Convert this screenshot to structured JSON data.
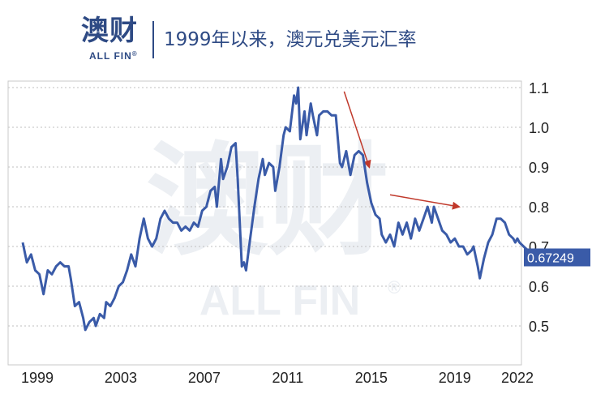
{
  "header": {
    "logo_cn": "澳财",
    "logo_en": "ALL FIN",
    "logo_reg": "®",
    "title": "1999年以来，澳元兑美元汇率"
  },
  "watermark": {
    "cn": "澳财",
    "en": "ALL FIN",
    "reg": "®"
  },
  "colors": {
    "line": "#3a5ba8",
    "arrow": "#c0392b",
    "brand": "#2e4a84",
    "grid": "#bfbfbf"
  },
  "chart_data": {
    "type": "line",
    "title": "1999年以来，澳元兑美元汇率",
    "xlim": [
      1998.2,
      2022.3
    ],
    "ylim": [
      0.4,
      1.1
    ],
    "x_ticks": [
      "1999",
      "2003",
      "2007",
      "2011",
      "2015",
      "2019",
      "2022"
    ],
    "x_tick_values": [
      1999,
      2003,
      2007,
      2011,
      2015,
      2019,
      2022
    ],
    "y_ticks": [
      "1.1",
      "1.0",
      "0.9",
      "0.8",
      "0.7",
      "0.6",
      "0.5"
    ],
    "y_tick_values": [
      1.1,
      1.0,
      0.9,
      0.8,
      0.7,
      0.6,
      0.5
    ],
    "grid": "horizontal dotted",
    "last_value_label": "0.67249",
    "last_value": 0.67249,
    "series": [
      {
        "points": [
          [
            1998.3,
            0.71
          ],
          [
            1998.5,
            0.66
          ],
          [
            1998.7,
            0.68
          ],
          [
            1998.9,
            0.64
          ],
          [
            1999.1,
            0.63
          ],
          [
            1999.3,
            0.58
          ],
          [
            1999.5,
            0.64
          ],
          [
            1999.7,
            0.63
          ],
          [
            1999.9,
            0.65
          ],
          [
            2000.1,
            0.66
          ],
          [
            2000.3,
            0.65
          ],
          [
            2000.5,
            0.65
          ],
          [
            2000.6,
            0.62
          ],
          [
            2000.8,
            0.55
          ],
          [
            2001.0,
            0.56
          ],
          [
            2001.2,
            0.52
          ],
          [
            2001.3,
            0.49
          ],
          [
            2001.5,
            0.51
          ],
          [
            2001.7,
            0.52
          ],
          [
            2001.8,
            0.5
          ],
          [
            2002.0,
            0.53
          ],
          [
            2002.2,
            0.52
          ],
          [
            2002.3,
            0.56
          ],
          [
            2002.5,
            0.55
          ],
          [
            2002.7,
            0.57
          ],
          [
            2002.9,
            0.6
          ],
          [
            2003.1,
            0.61
          ],
          [
            2003.3,
            0.64
          ],
          [
            2003.5,
            0.68
          ],
          [
            2003.7,
            0.65
          ],
          [
            2003.9,
            0.72
          ],
          [
            2004.1,
            0.77
          ],
          [
            2004.3,
            0.72
          ],
          [
            2004.5,
            0.7
          ],
          [
            2004.7,
            0.72
          ],
          [
            2004.9,
            0.77
          ],
          [
            2005.1,
            0.79
          ],
          [
            2005.3,
            0.77
          ],
          [
            2005.5,
            0.76
          ],
          [
            2005.7,
            0.76
          ],
          [
            2005.9,
            0.74
          ],
          [
            2006.1,
            0.75
          ],
          [
            2006.3,
            0.74
          ],
          [
            2006.5,
            0.76
          ],
          [
            2006.7,
            0.75
          ],
          [
            2006.9,
            0.79
          ],
          [
            2007.1,
            0.8
          ],
          [
            2007.3,
            0.84
          ],
          [
            2007.5,
            0.85
          ],
          [
            2007.6,
            0.8
          ],
          [
            2007.8,
            0.92
          ],
          [
            2007.9,
            0.87
          ],
          [
            2008.1,
            0.9
          ],
          [
            2008.3,
            0.95
          ],
          [
            2008.5,
            0.96
          ],
          [
            2008.6,
            0.87
          ],
          [
            2008.8,
            0.65
          ],
          [
            2008.9,
            0.66
          ],
          [
            2009.0,
            0.64
          ],
          [
            2009.2,
            0.72
          ],
          [
            2009.4,
            0.8
          ],
          [
            2009.6,
            0.87
          ],
          [
            2009.8,
            0.92
          ],
          [
            2009.9,
            0.88
          ],
          [
            2010.1,
            0.91
          ],
          [
            2010.3,
            0.9
          ],
          [
            2010.4,
            0.84
          ],
          [
            2010.6,
            0.9
          ],
          [
            2010.8,
            0.98
          ],
          [
            2010.9,
            1.0
          ],
          [
            2011.1,
            0.99
          ],
          [
            2011.3,
            1.08
          ],
          [
            2011.4,
            1.06
          ],
          [
            2011.5,
            1.1
          ],
          [
            2011.6,
            0.97
          ],
          [
            2011.8,
            1.04
          ],
          [
            2011.9,
            0.98
          ],
          [
            2012.1,
            1.06
          ],
          [
            2012.2,
            1.03
          ],
          [
            2012.4,
            0.98
          ],
          [
            2012.5,
            1.03
          ],
          [
            2012.7,
            1.04
          ],
          [
            2012.9,
            1.04
          ],
          [
            2013.1,
            1.03
          ],
          [
            2013.3,
            1.03
          ],
          [
            2013.5,
            0.91
          ],
          [
            2013.6,
            0.9
          ],
          [
            2013.8,
            0.94
          ],
          [
            2014.0,
            0.88
          ],
          [
            2014.2,
            0.93
          ],
          [
            2014.4,
            0.94
          ],
          [
            2014.6,
            0.93
          ],
          [
            2014.8,
            0.86
          ],
          [
            2015.0,
            0.81
          ],
          [
            2015.2,
            0.78
          ],
          [
            2015.4,
            0.77
          ],
          [
            2015.5,
            0.73
          ],
          [
            2015.7,
            0.71
          ],
          [
            2015.9,
            0.73
          ],
          [
            2016.1,
            0.7
          ],
          [
            2016.3,
            0.76
          ],
          [
            2016.5,
            0.73
          ],
          [
            2016.7,
            0.76
          ],
          [
            2016.9,
            0.72
          ],
          [
            2017.1,
            0.77
          ],
          [
            2017.3,
            0.74
          ],
          [
            2017.5,
            0.77
          ],
          [
            2017.7,
            0.8
          ],
          [
            2017.9,
            0.76
          ],
          [
            2018.0,
            0.8
          ],
          [
            2018.2,
            0.77
          ],
          [
            2018.4,
            0.74
          ],
          [
            2018.6,
            0.73
          ],
          [
            2018.8,
            0.71
          ],
          [
            2019.0,
            0.72
          ],
          [
            2019.2,
            0.7
          ],
          [
            2019.4,
            0.7
          ],
          [
            2019.6,
            0.68
          ],
          [
            2019.8,
            0.69
          ],
          [
            2019.9,
            0.7
          ],
          [
            2020.1,
            0.65
          ],
          [
            2020.2,
            0.62
          ],
          [
            2020.4,
            0.67
          ],
          [
            2020.6,
            0.71
          ],
          [
            2020.8,
            0.73
          ],
          [
            2021.0,
            0.77
          ],
          [
            2021.2,
            0.77
          ],
          [
            2021.4,
            0.76
          ],
          [
            2021.6,
            0.73
          ],
          [
            2021.8,
            0.72
          ],
          [
            2021.9,
            0.71
          ],
          [
            2022.0,
            0.72
          ],
          [
            2022.1,
            0.71
          ],
          [
            2022.3,
            0.7
          ],
          [
            2022.5,
            0.69
          ],
          [
            2022.7,
            0.67249
          ]
        ]
      }
    ],
    "annotations": [
      {
        "type": "arrow",
        "from": [
          2013.7,
          1.09
        ],
        "to": [
          2014.9,
          0.9
        ]
      },
      {
        "type": "arrow",
        "from": [
          2015.9,
          0.83
        ],
        "to": [
          2019.2,
          0.8
        ]
      }
    ]
  }
}
